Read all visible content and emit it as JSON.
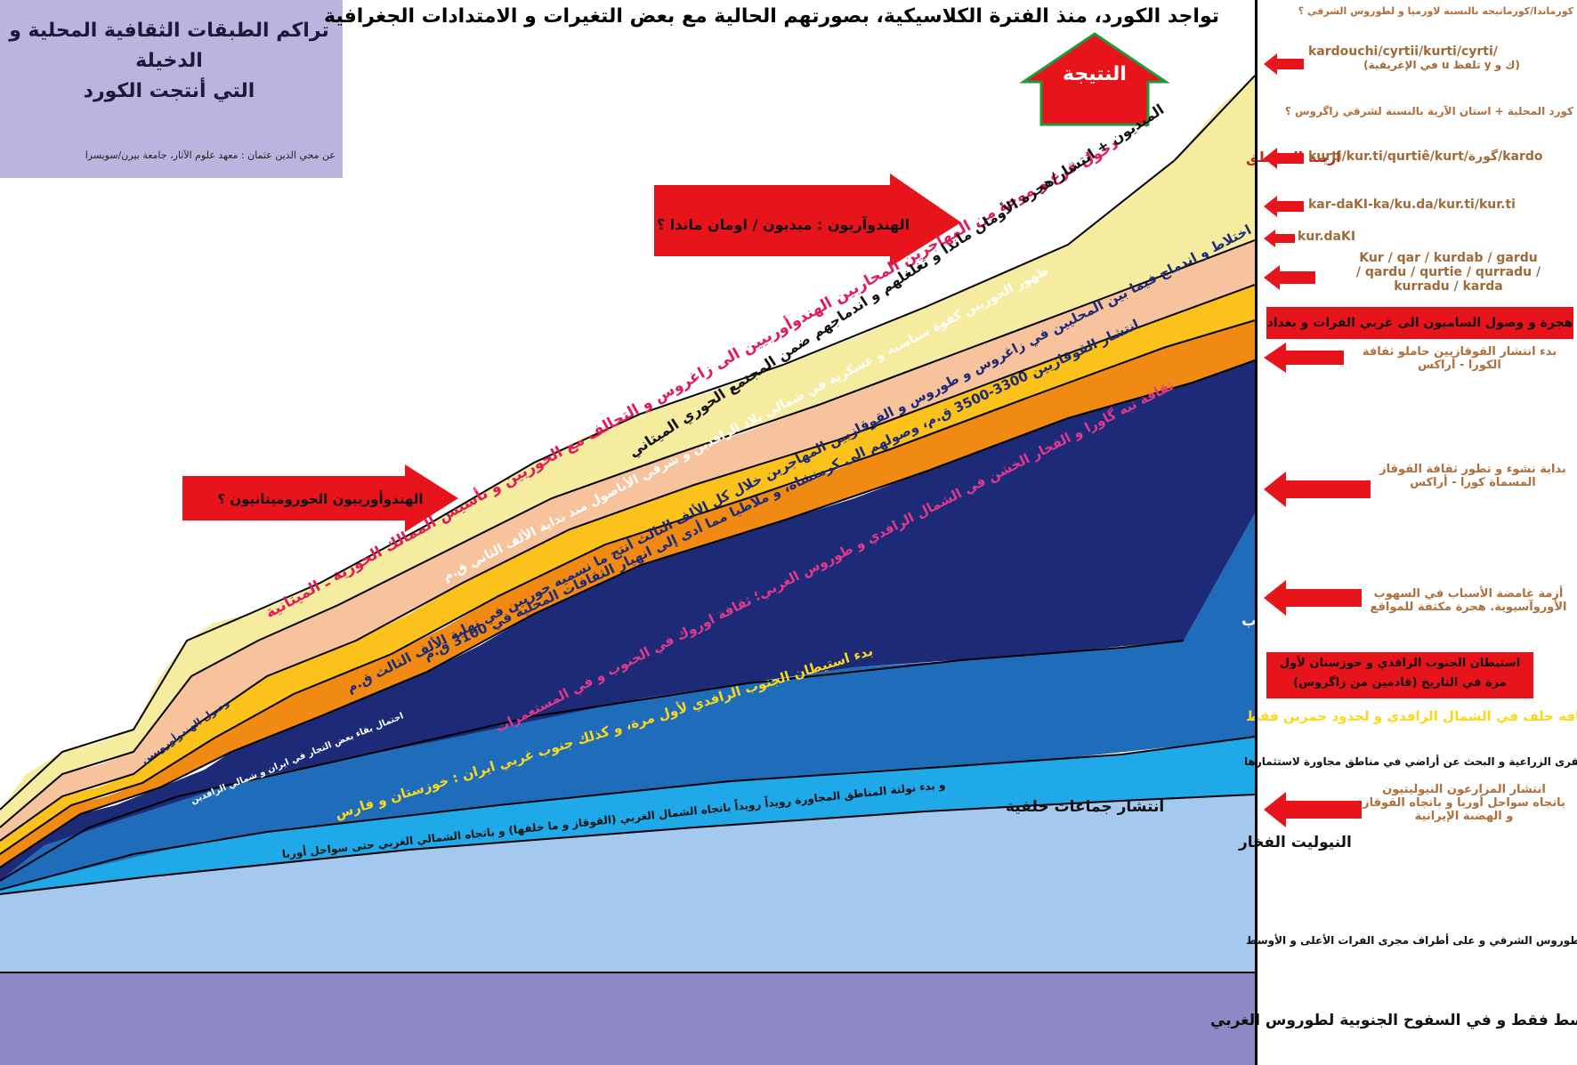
{
  "header": {
    "main_title": "تواجد الكورد، منذ الفترة الكلاسيكية، بصورتهم الحالية مع بعض التغيرات و الامتدادات الجغرافية",
    "result_label": "النتيجة"
  },
  "title_box": {
    "title_line1": "تراكم الطبقات الثقافية المحلية و الدخيلة",
    "title_line2": "التي أنتجت الكورد",
    "credit": "عن محي الدين عثمان  : معهد علوم الآثار، جامعة بيرن/سويسرا"
  },
  "colors": {
    "lavender": "#8e88c4",
    "light_blue": "#a5c8ee",
    "sky_blue": "#1fa9e8",
    "mid_blue": "#1f6dba",
    "navy": "#1c2a78",
    "orange": "#f08a12",
    "yellow": "#fcc21c",
    "peach": "#f7c39c",
    "pale_yellow": "#f5eca0",
    "arrow_red": "#e8141c",
    "result_green": "#1f9a3a"
  },
  "layers": [
    {
      "id": "zarzi",
      "color": "#8e88c4",
      "label": "ثقافة زارزي و الانتقال من الكهوف الى السهول و بناء أولى الأكواخ ـ أمثلة عديدة في شرقي و غربي زاغروس الأوسط فقط و في السفوح الجنوبية لطوروس الغربي"
    },
    {
      "id": "preceramic",
      "color": "#a5c8ee",
      "label": "النيوليت ما قبل الفخار و المستوطنات الأولى على السفوح الشرقية و الغربية لزاغروس الأوسط و على سفوح طوروس الشرقي و على أطراف مجرى الفرات الأعلى و الأوسط"
    },
    {
      "id": "ceramic",
      "color": "#1fa9e8",
      "label": "النيوليت الفخار",
      "sublabel": "و بدء نولتة المناطق المجاورة رويداً رويداً باتجاه الشمال الغربي  (القوقاز و ما خلفها) و باتجاه الشمالي الغربي حتى سواحل أوربا"
    },
    {
      "id": "halaf",
      "color": "#1f6dba",
      "label": "ثقافة حلف في الشمال الرافدي و لحدود حمرين فقط",
      "label2": "انتشار القرى الزراعية و البحث عن أراضي في مناطق مجاورة لاستثمارها",
      "label3": "انتشار جماعات حلفية",
      "label4": "بدء استيطان الجنوب الرافدي لأول مرة، و كذلك جنوب غربي ايران : خوزستان و فارس"
    },
    {
      "id": "ubaid",
      "color": "#1c2a78",
      "label": "ثقافة العُبيد في الشمال و الجنوب",
      "label2": "ثقافة تبه گاورا و الفخار الخشن في الشمال الرافدي و طوروس الغربي؛ ثقافة اوروك في الجنوب و في المستعمرات"
    },
    {
      "id": "kura",
      "color": "#f08a12",
      "label": "انتشار القوقازيين 3300-3500 ق.م، وصولهم الى كرمنشاه، و ملاطيا مما أدى إلى انهيار الثقافات المحلية في 3100 ق.م",
      "label2": "احتمال بقاء بعض التجار في ايران و شمالي الرافدين"
    },
    {
      "id": "mixing",
      "color": "#fcc21c",
      "label": "اختلاط و اندماج فيما بين المحليين في زاغروس و طوروس و القوقازيين المهاجرين خلال كل الألف الثالث أنتج ما نسميه حوريين في نهاية الألف الثالث ق.م",
      "label2": "وصول الهندوأوروبيين"
    },
    {
      "id": "hurrians",
      "color": "#f7c39c",
      "label": "ظهور الحوريين كقوة سياسية و عسكرية في شمالي بلاد الرافدين و شرقي الأناضول منذ بداية الألف الثاني ق.م"
    },
    {
      "id": "mitanni",
      "color": "#f5eca0",
      "label": "دخول فرع و موجة من المهاجرين المحاربين الهندوأوربيين الى زاغروس و التحالف مع الحوريين و تأسيس الممالك الحورية ـ الميتانية",
      "label2": "الميديون + انتشار/هجرة الأومان ماندا و تغلغلهم و اندماجهم ضمن المجتمع الحوري الميتاني",
      "label3": "ارينة المناطق"
    }
  ],
  "inline_arrows": {
    "indo_hurro": "الهندوأوربيون الحوروميتانيون ؟",
    "indo_aryan": "الهندوآريون : ميديون / اومان ماندا ؟"
  },
  "sidebar": {
    "items": [
      {
        "type": "ar",
        "text": "كورماندا/كورماتيجه بالنسبة لاورميا و لطوروس الشرقي ؟"
      },
      {
        "type": "lat",
        "text": "kardouchi/cyrtii/kurti/cyrti/",
        "text2": "(ك و y تلفظ u في الإغريقية)"
      },
      {
        "type": "ar",
        "text": "كورد المحلية + استان الآرية بالنسبة لشرقي زاگروس ؟"
      },
      {
        "type": "lat",
        "text": "kurti/kur.ti/qurtiê/kurt/گورة/kardo"
      },
      {
        "type": "lat",
        "text": "kar-daKI-ka/ku.da/kur.ti/kur.ti"
      },
      {
        "type": "lat",
        "text": "kur.daKI"
      },
      {
        "type": "lat",
        "text": "Kur / qar / kurdab / gardu",
        "text2": "/ qardu / qurtie / qurradu /",
        "text3": "kurradu / karda"
      },
      {
        "type": "box",
        "text": "هجرة و وصول الساميون الى غربي الفرات و بغداد"
      },
      {
        "type": "ar",
        "text": "بدء انتشار القوقازيين حاملو ثقافة",
        "text2": "الكورا - أراكس"
      },
      {
        "type": "ar",
        "text": "بداية نشوء و تطور ثقافة القوقاز",
        "text2": "المسماة كورا - أراكس"
      },
      {
        "type": "ar",
        "text": "أزمة غامضة الأسباب في السهوب",
        "text2": "الأوروآسيوية. هجرة مكثفة  للمواقع"
      },
      {
        "type": "box",
        "text": "استيطان الجنوب الرافدي و خوزستان لأول",
        "text2": "مرة في التاريخ (قادمين من زاگروس)"
      },
      {
        "type": "ar",
        "text": "انتشار المزارعون النيوليتيون",
        "text2": "باتجاه سواحل أوربا و باتجاه القوقاز",
        "text3": "و الهضبة الإيرانية"
      }
    ]
  }
}
